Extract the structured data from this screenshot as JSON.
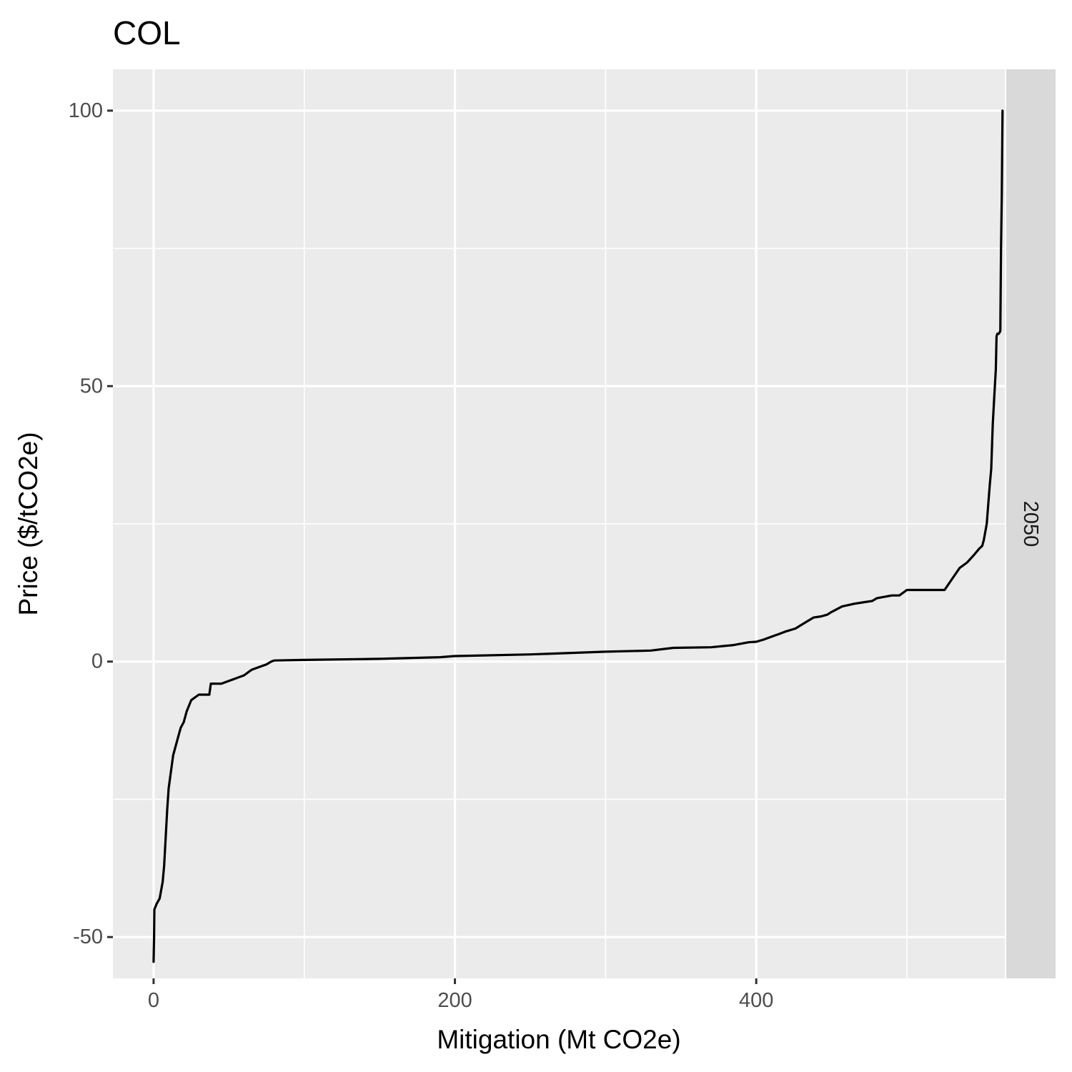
{
  "chart_data": {
    "type": "line",
    "title": "COL",
    "xlabel": "Mitigation (Mt CO2e)",
    "ylabel": "Price ($/tCO2e)",
    "facet_label": "2050",
    "xlim": [
      -27,
      565
    ],
    "ylim": [
      -57.5,
      107.5
    ],
    "x_ticks": [
      0,
      200,
      400
    ],
    "x_tick_labels": [
      "0",
      "200",
      "400"
    ],
    "y_ticks": [
      -50,
      0,
      50,
      100
    ],
    "y_tick_labels": [
      "-50",
      "0",
      "50",
      "100"
    ],
    "grid": true,
    "line_color": "#000000",
    "panel_background": "#ebebeb",
    "strip_background": "#d9d9d9",
    "series": [
      {
        "values": [
          [
            0,
            -54.5
          ],
          [
            0.3,
            -50
          ],
          [
            0.5,
            -45
          ],
          [
            2,
            -44
          ],
          [
            4,
            -43
          ],
          [
            6,
            -40
          ],
          [
            7,
            -37
          ],
          [
            8,
            -32
          ],
          [
            9,
            -27
          ],
          [
            10,
            -23
          ],
          [
            11,
            -21
          ],
          [
            12,
            -19
          ],
          [
            13,
            -17
          ],
          [
            14,
            -16
          ],
          [
            15,
            -15
          ],
          [
            16,
            -14
          ],
          [
            18,
            -12
          ],
          [
            20,
            -11
          ],
          [
            22,
            -9
          ],
          [
            25,
            -7
          ],
          [
            30,
            -6
          ],
          [
            37,
            -6
          ],
          [
            38,
            -4
          ],
          [
            45,
            -4
          ],
          [
            50,
            -3.5
          ],
          [
            55,
            -3
          ],
          [
            60,
            -2.5
          ],
          [
            65,
            -1.5
          ],
          [
            70,
            -1
          ],
          [
            75,
            -0.5
          ],
          [
            78,
            0
          ],
          [
            80,
            0.2
          ],
          [
            100,
            0.3
          ],
          [
            150,
            0.5
          ],
          [
            190,
            0.8
          ],
          [
            200,
            1
          ],
          [
            250,
            1.3
          ],
          [
            300,
            1.8
          ],
          [
            330,
            2
          ],
          [
            345,
            2.5
          ],
          [
            370,
            2.6
          ],
          [
            385,
            3
          ],
          [
            395,
            3.5
          ],
          [
            400,
            3.6
          ],
          [
            405,
            4
          ],
          [
            410,
            4.5
          ],
          [
            415,
            5
          ],
          [
            420,
            5.5
          ],
          [
            426,
            6
          ],
          [
            432,
            7
          ],
          [
            438,
            8
          ],
          [
            443,
            8.2
          ],
          [
            447,
            8.5
          ],
          [
            450,
            9
          ],
          [
            457,
            10
          ],
          [
            465,
            10.5
          ],
          [
            472,
            10.8
          ],
          [
            477,
            11
          ],
          [
            480,
            11.5
          ],
          [
            490,
            12
          ],
          [
            495,
            12
          ],
          [
            500,
            13
          ],
          [
            525,
            13
          ],
          [
            530,
            15
          ],
          [
            535,
            17
          ],
          [
            540,
            18
          ],
          [
            545,
            19.5
          ],
          [
            548,
            20.5
          ],
          [
            550,
            21
          ],
          [
            551,
            22
          ],
          [
            553,
            25
          ],
          [
            555,
            32
          ],
          [
            556,
            35
          ],
          [
            557,
            43
          ],
          [
            558,
            48
          ],
          [
            559,
            53
          ],
          [
            559.5,
            59
          ],
          [
            560,
            59.5
          ],
          [
            561,
            59.5
          ],
          [
            562,
            60
          ],
          [
            562.5,
            75
          ],
          [
            563,
            85
          ],
          [
            563.5,
            100
          ]
        ]
      }
    ]
  }
}
